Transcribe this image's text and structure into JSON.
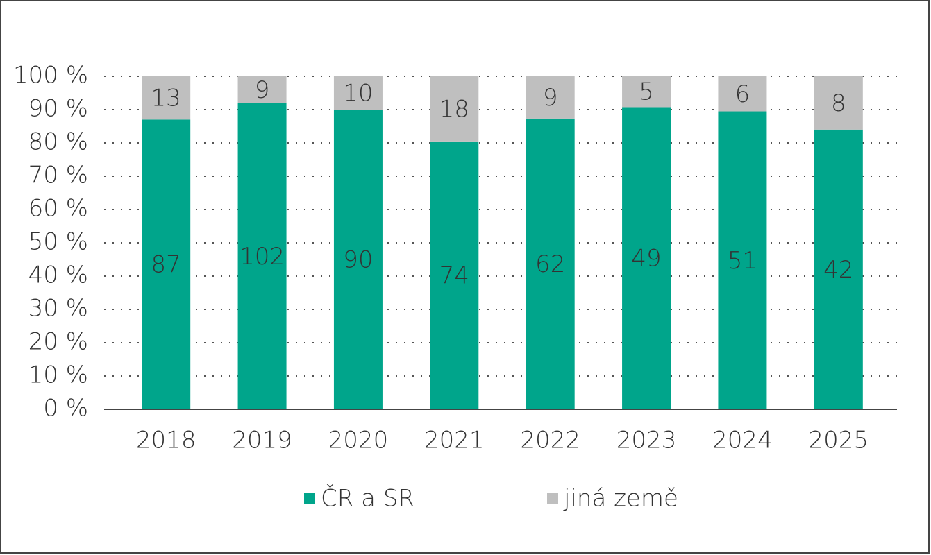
{
  "chart_data": {
    "type": "bar",
    "stacked": "percent",
    "categories": [
      "2018",
      "2019",
      "2020",
      "2021",
      "2022",
      "2023",
      "2024",
      "2025"
    ],
    "series": [
      {
        "name": "ČR a SR",
        "color": "#00a58b",
        "values": [
          87,
          102,
          90,
          74,
          62,
          49,
          51,
          42
        ]
      },
      {
        "name": "jiná země",
        "color": "#bfbfbf",
        "values": [
          13,
          9,
          10,
          18,
          9,
          5,
          6,
          8
        ]
      }
    ],
    "ylim": [
      0,
      100
    ],
    "yticks": [
      {
        "value": 0,
        "label": "0 %"
      },
      {
        "value": 10,
        "label": "10 %"
      },
      {
        "value": 20,
        "label": "20 %"
      },
      {
        "value": 30,
        "label": "30 %"
      },
      {
        "value": 40,
        "label": "40 %"
      },
      {
        "value": 50,
        "label": "50 %"
      },
      {
        "value": 60,
        "label": "60 %"
      },
      {
        "value": 70,
        "label": "70 %"
      },
      {
        "value": 80,
        "label": "80 %"
      },
      {
        "value": 90,
        "label": "90 %"
      },
      {
        "value": 100,
        "label": "100 %"
      }
    ],
    "grid": true
  }
}
